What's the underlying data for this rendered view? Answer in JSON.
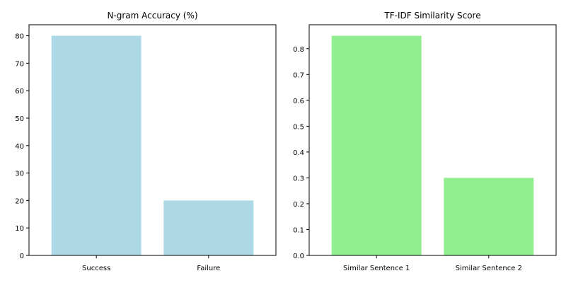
{
  "chart_data": [
    {
      "type": "bar",
      "title": "N-gram Accuracy (%)",
      "categories": [
        "Success",
        "Failure"
      ],
      "values": [
        80,
        20
      ],
      "xlabel": "",
      "ylabel": "",
      "ylim": [
        0,
        84
      ],
      "yticks": [
        0,
        10,
        20,
        30,
        40,
        50,
        60,
        70,
        80
      ],
      "ytick_labels": [
        "0",
        "10",
        "20",
        "30",
        "40",
        "50",
        "60",
        "70",
        "80"
      ],
      "bar_color": "#add8e6",
      "grid": false
    },
    {
      "type": "bar",
      "title": "TF-IDF Similarity Score",
      "categories": [
        "Similar Sentence 1",
        "Similar Sentence 2"
      ],
      "values": [
        0.85,
        0.3
      ],
      "xlabel": "",
      "ylabel": "",
      "ylim": [
        0,
        0.8925
      ],
      "yticks": [
        0,
        0.1,
        0.2,
        0.3,
        0.4,
        0.5,
        0.6,
        0.7,
        0.8
      ],
      "ytick_labels": [
        "0.0",
        "0.1",
        "0.2",
        "0.3",
        "0.4",
        "0.5",
        "0.6",
        "0.7",
        "0.8"
      ],
      "bar_color": "#90ee90",
      "grid": false
    }
  ]
}
